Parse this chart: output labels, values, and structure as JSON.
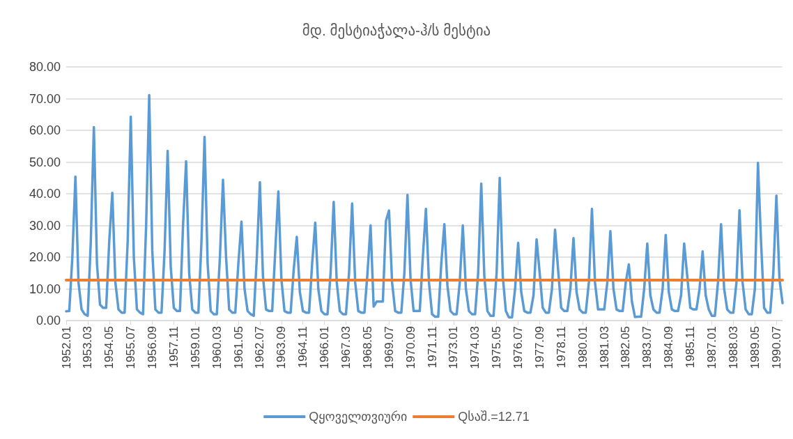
{
  "chart_data": {
    "type": "line",
    "title": "მდ. მესტიაჭალა-ჰ/ს მესტია",
    "legend": "bottom",
    "grid": "y",
    "marker": "none",
    "line_style": "solid",
    "categories": [
      "1952.01",
      null,
      null,
      null,
      null,
      null,
      null,
      "1953.03",
      null,
      null,
      null,
      null,
      null,
      null,
      "1954.05",
      null,
      null,
      null,
      null,
      null,
      null,
      "1955.07",
      null,
      null,
      null,
      null,
      null,
      null,
      "1956.09",
      null,
      null,
      null,
      null,
      null,
      null,
      "1957.11",
      null,
      null,
      null,
      null,
      null,
      null,
      "1959.01",
      null,
      null,
      null,
      null,
      null,
      null,
      "1960.03",
      null,
      null,
      null,
      null,
      null,
      null,
      "1961.05",
      null,
      null,
      null,
      null,
      null,
      null,
      "1962.07",
      null,
      null,
      null,
      null,
      null,
      null,
      "1963.09",
      null,
      null,
      null,
      null,
      null,
      null,
      "1964.11",
      null,
      null,
      null,
      null,
      null,
      null,
      "1966.01",
      null,
      null,
      null,
      null,
      null,
      null,
      "1967.03",
      null,
      null,
      null,
      null,
      null,
      null,
      "1968.05",
      null,
      null,
      null,
      null,
      null,
      null,
      "1969.07",
      null,
      null,
      null,
      null,
      null,
      null,
      "1970.09",
      null,
      null,
      null,
      null,
      null,
      null,
      "1971.11",
      null,
      null,
      null,
      null,
      null,
      null,
      "1973.01",
      null,
      null,
      null,
      null,
      null,
      null,
      "1974.03",
      null,
      null,
      null,
      null,
      null,
      null,
      "1975.05",
      null,
      null,
      null,
      null,
      null,
      null,
      "1976.07",
      null,
      null,
      null,
      null,
      null,
      null,
      "1977.09",
      null,
      null,
      null,
      null,
      null,
      null,
      "1978.11",
      null,
      null,
      null,
      null,
      null,
      null,
      "1980.01",
      null,
      null,
      null,
      null,
      null,
      null,
      "1981.03",
      null,
      null,
      null,
      null,
      null,
      null,
      "1982.05",
      null,
      null,
      null,
      null,
      null,
      null,
      "1983.07",
      null,
      null,
      null,
      null,
      null,
      null,
      "1984.09",
      null,
      null,
      null,
      null,
      null,
      null,
      "1985.11",
      null,
      null,
      null,
      null,
      null,
      null,
      "1987.01",
      null,
      null,
      null,
      null,
      null,
      null,
      "1988.03",
      null,
      null,
      null,
      null,
      null,
      null,
      "1989.05",
      null,
      null,
      null,
      null,
      null,
      null,
      "1990.07",
      null,
      null
    ],
    "ylim": [
      0,
      80
    ],
    "yticks": [
      {
        "value": 0,
        "label": "0.00"
      },
      {
        "value": 10,
        "label": "10.00"
      },
      {
        "value": 20,
        "label": "20.00"
      },
      {
        "value": 30,
        "label": "30.00"
      },
      {
        "value": 40,
        "label": "40.00"
      },
      {
        "value": 50,
        "label": "50.00"
      },
      {
        "value": 60,
        "label": "60.00"
      },
      {
        "value": 70,
        "label": "70.00"
      },
      {
        "value": 80,
        "label": "80.00"
      }
    ],
    "series": [
      {
        "name": "Qყოველთვიური",
        "color": "#5b9bd5",
        "values": [
          2.9,
          3,
          20,
          45.4,
          12,
          3.5,
          2,
          1.5,
          25,
          61,
          18,
          5,
          4,
          4,
          25,
          40.3,
          12,
          3.5,
          2.5,
          2.5,
          25,
          64.3,
          20,
          3.5,
          2.5,
          2,
          30,
          71.1,
          22,
          3.5,
          2.5,
          2.5,
          22,
          53.5,
          17,
          4,
          3,
          3,
          30,
          50.2,
          15,
          3.5,
          2.5,
          2.5,
          25,
          57.9,
          18,
          3,
          2,
          2,
          20,
          44.4,
          20,
          3.5,
          2.5,
          2.5,
          18,
          31.2,
          10,
          3,
          2,
          1.5,
          20,
          43.6,
          14,
          3.5,
          3,
          3,
          22,
          40.7,
          13,
          3,
          2.5,
          2.5,
          16,
          26.4,
          9,
          3,
          2.5,
          2.5,
          18,
          30.9,
          10,
          3,
          2,
          2,
          15,
          37.4,
          12,
          3,
          2,
          2,
          15,
          36.9,
          12,
          3,
          2.5,
          2.5,
          15,
          30,
          4.4,
          6,
          6,
          6,
          31.4,
          34.7,
          12,
          3,
          2.5,
          2.5,
          15,
          39.6,
          13,
          3,
          3,
          3,
          20,
          35.2,
          12,
          2,
          1.2,
          1.2,
          18,
          30.4,
          11,
          3,
          2,
          2,
          12,
          30,
          10,
          3,
          2,
          2,
          15,
          43.2,
          14,
          3,
          1.5,
          1.5,
          15,
          45,
          14,
          3,
          1,
          1,
          10,
          24.5,
          9,
          3,
          2.5,
          2.5,
          8,
          25.6,
          15,
          4,
          2.5,
          2.5,
          10,
          28.7,
          16,
          4,
          3,
          3,
          10,
          26,
          9,
          3.5,
          2.5,
          2.5,
          12,
          35.2,
          12,
          3.5,
          3.5,
          3.5,
          12,
          28.2,
          10,
          3.5,
          3,
          3,
          12,
          17.7,
          6,
          1.1,
          1.2,
          1.2,
          10,
          24.3,
          8,
          3.5,
          2.5,
          2.5,
          10,
          27,
          9,
          3.5,
          3,
          3,
          8,
          24.3,
          14,
          4,
          3.5,
          3.5,
          10,
          21.8,
          8,
          3.5,
          1.5,
          1.5,
          12,
          30.4,
          10,
          3.5,
          2.5,
          2.5,
          12,
          34.8,
          12,
          3.5,
          2,
          2,
          10,
          49.7,
          25,
          4,
          2.5,
          2.5,
          15,
          39.4,
          13,
          5.5
        ]
      }
    ],
    "ref_lines": [
      {
        "axis": "y",
        "value": 12.71,
        "label": "Qსაშ.=12.71",
        "color": "#ed7d31"
      }
    ]
  }
}
